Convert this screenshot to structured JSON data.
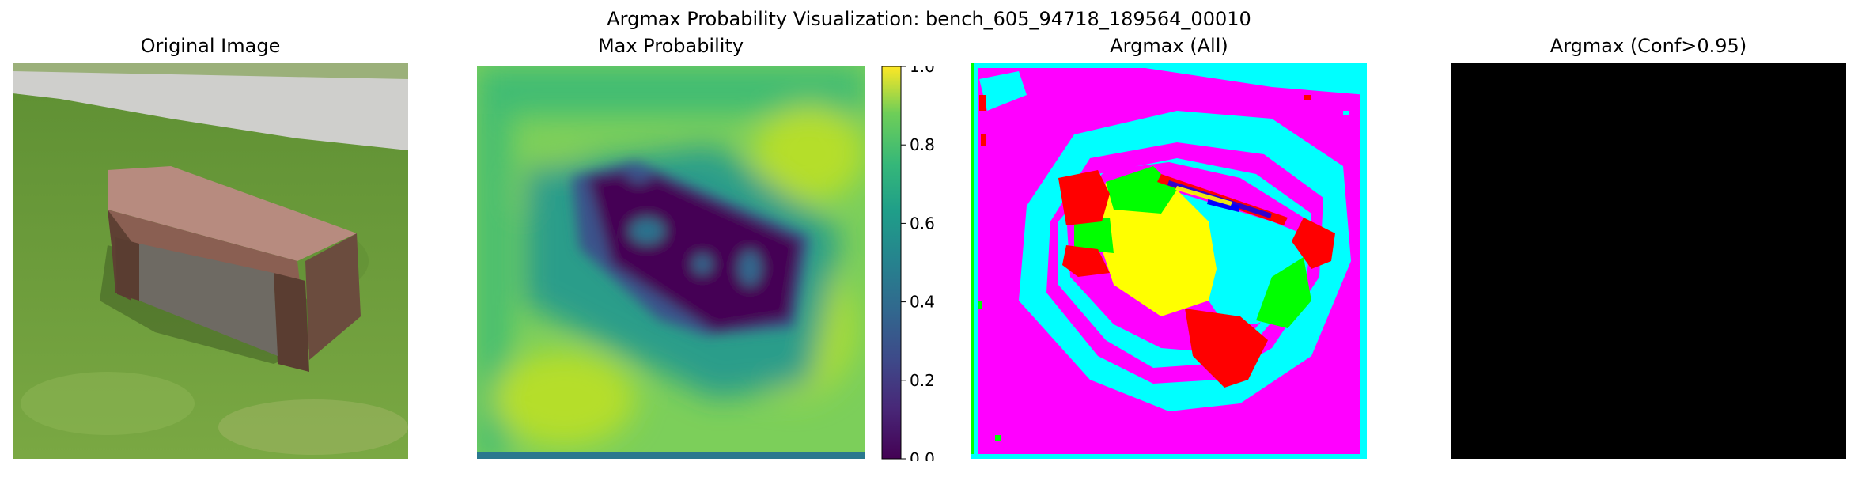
{
  "figure": {
    "title": "Argmax Probability Visualization: bench_605_94718_189564_00010"
  },
  "panels": [
    {
      "title": "Original Image"
    },
    {
      "title": "Max Probability"
    },
    {
      "title": "Argmax (All)"
    },
    {
      "title": "Argmax (Conf>0.95)"
    }
  ],
  "colorbar": {
    "colormap": "viridis",
    "range": [
      0.0,
      1.0
    ],
    "ticks": [
      "0.0",
      "0.2",
      "0.4",
      "0.6",
      "0.8",
      "1.0"
    ]
  },
  "colors": {
    "grass": "#6a9b3a",
    "bench_top": "#b5867a",
    "bench_side": "#6b4c3e",
    "viridis_low": "#440154",
    "viridis_mid": "#21918c",
    "viridis_high": "#fde725",
    "magenta": "#ff00ff",
    "cyan": "#00ffff",
    "red": "#ff0000",
    "green": "#00ff00",
    "yellow": "#ffff00",
    "blue": "#0000ff",
    "black": "#000000"
  }
}
